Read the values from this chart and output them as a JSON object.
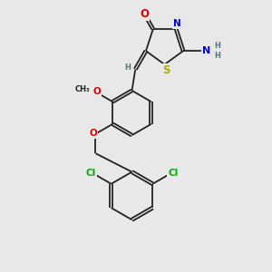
{
  "bg_color": "#e8e8e8",
  "bond_color": "#222222",
  "bond_width": 1.3,
  "dbo": 0.06,
  "atom_colors": {
    "O": "#dd0000",
    "N": "#0000cc",
    "S": "#aaaa00",
    "Cl": "#00aa00",
    "C": "#222222",
    "H": "#557777"
  },
  "font_size": 7.5,
  "fig_size": [
    3.0,
    3.0
  ],
  "dpi": 100
}
